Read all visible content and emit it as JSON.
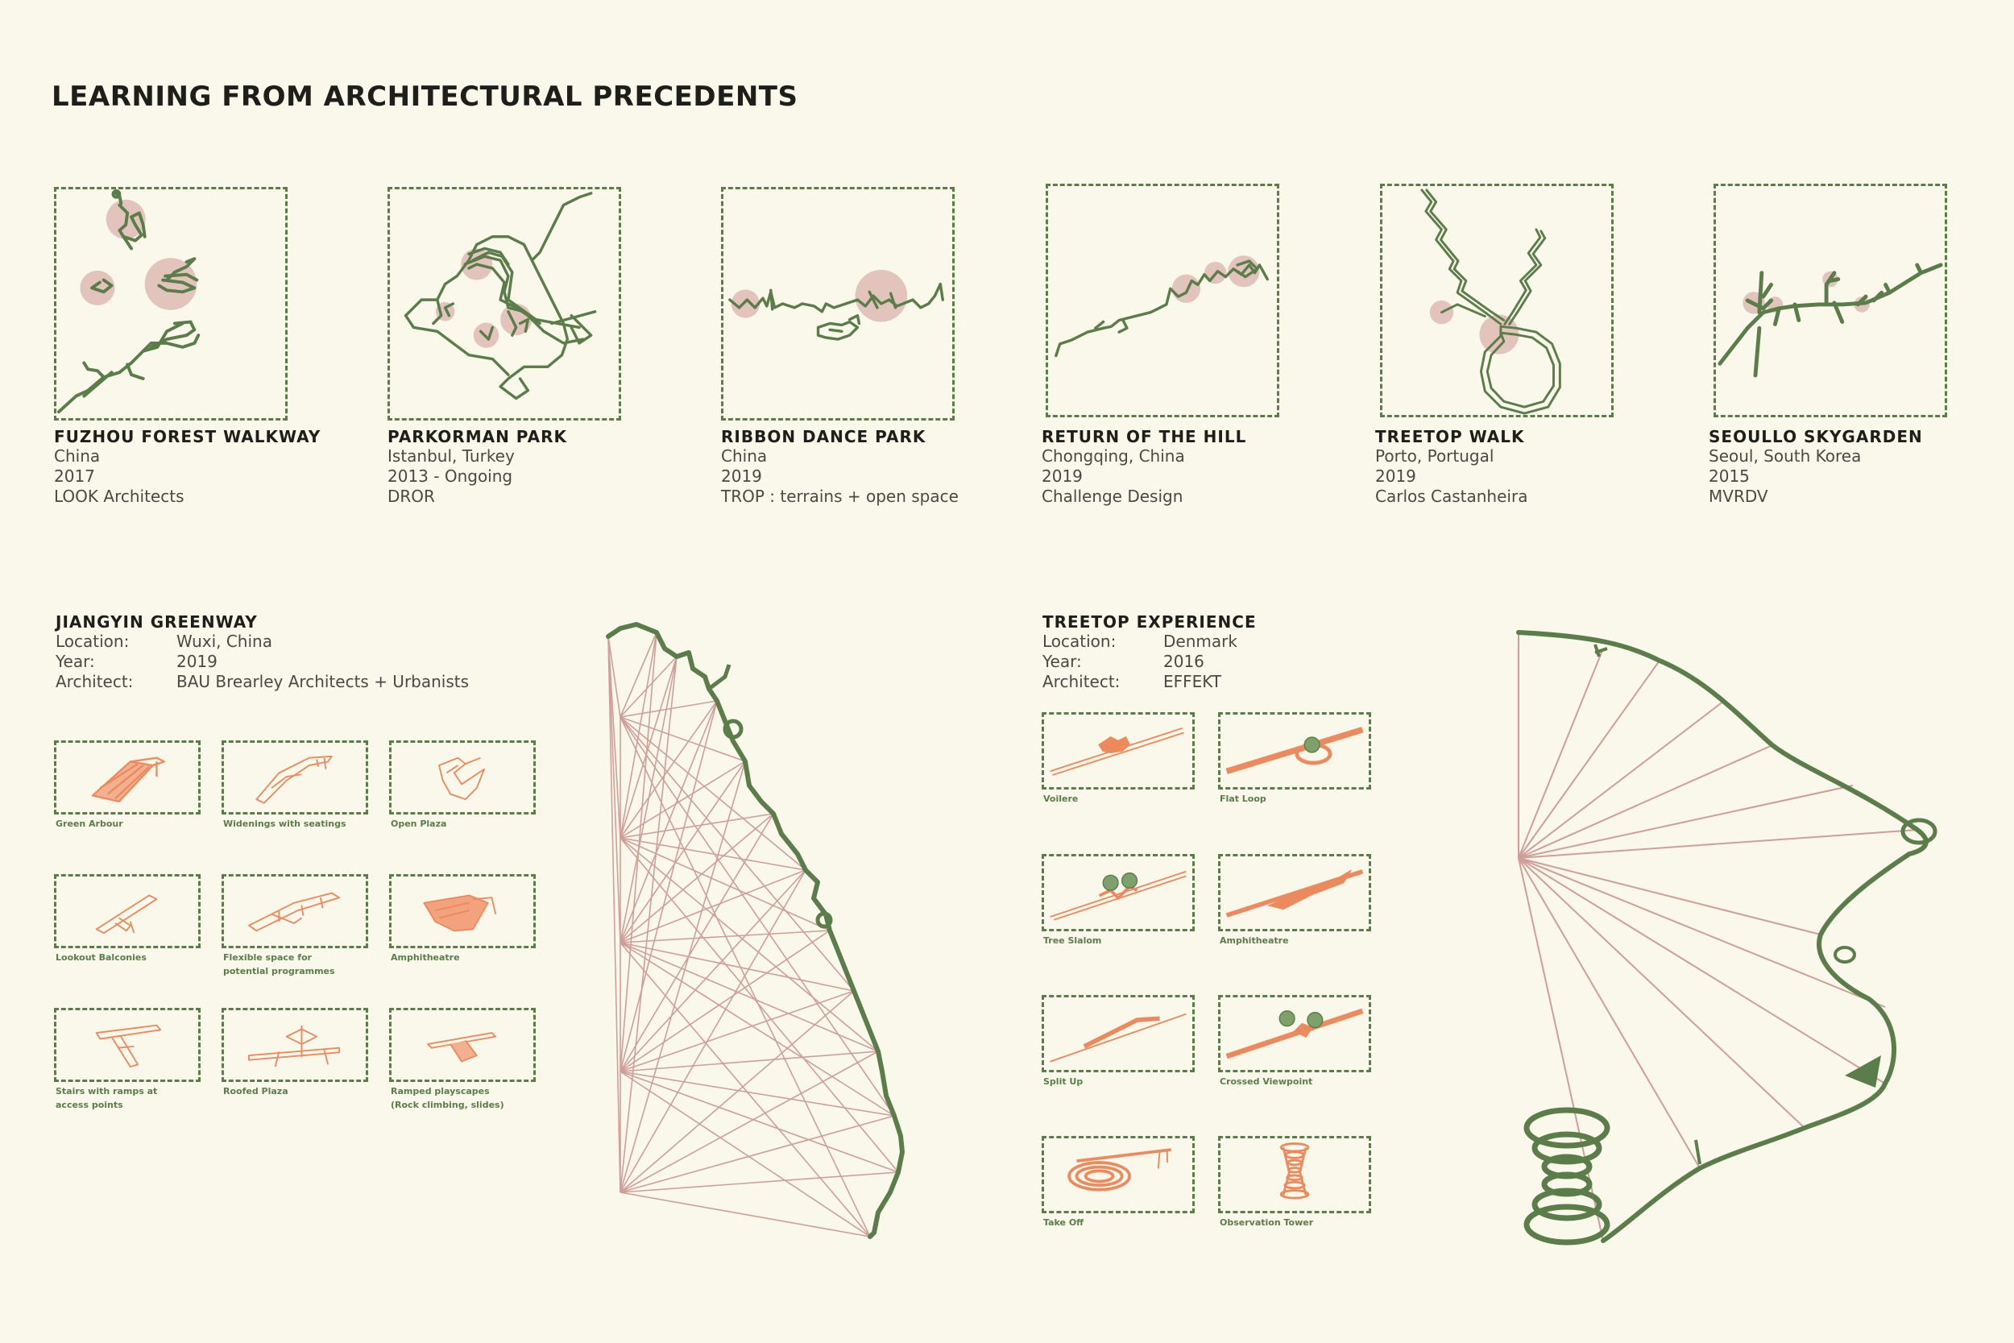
{
  "page_title": "LEARNING FROM ARCHITECTURAL PRECEDENTS",
  "precedents": [
    {
      "name": "FUZHOU FOREST WALKWAY",
      "location": "China",
      "year": "2017",
      "architect": "LOOK Architects"
    },
    {
      "name": "PARKORMAN PARK",
      "location": "Istanbul, Turkey",
      "year": "2013 - Ongoing",
      "architect": "DROR"
    },
    {
      "name": "RIBBON DANCE PARK",
      "location": "China",
      "year": "2019",
      "architect": "TROP : terrains + open space"
    },
    {
      "name": "RETURN OF THE HILL",
      "location": "Chongqing, China",
      "year": "2019",
      "architect": "Challenge Design"
    },
    {
      "name": "TREETOP WALK",
      "location": "Porto, Portugal",
      "year": "2019",
      "architect": "Carlos Castanheira"
    },
    {
      "name": "SEOULLO SKYGARDEN",
      "location": "Seoul, South Korea",
      "year": "2015",
      "architect": "MVRDV"
    }
  ],
  "jiangyin": {
    "title": "JIANGYIN GREENWAY",
    "rows": [
      {
        "key": "Location:",
        "value": "Wuxi, China"
      },
      {
        "key": "Year:",
        "value": "2019"
      },
      {
        "key": "Architect:",
        "value": "BAU Brearley Architects + Urbanists"
      }
    ],
    "elements": [
      {
        "label": "Green Arbour",
        "label2": ""
      },
      {
        "label": "Widenings with seatings",
        "label2": ""
      },
      {
        "label": "Open Plaza",
        "label2": ""
      },
      {
        "label": "Lookout Balconies",
        "label2": ""
      },
      {
        "label": "Flexible space for",
        "label2": "potential  programmes"
      },
      {
        "label": "Amphitheatre",
        "label2": ""
      },
      {
        "label": "Stairs with ramps at",
        "label2": "access points"
      },
      {
        "label": "Roofed Plaza",
        "label2": ""
      },
      {
        "label": "Ramped playscapes",
        "label2": "(Rock climbing, slides)"
      }
    ]
  },
  "treetop": {
    "title": "TREETOP EXPERIENCE",
    "rows": [
      {
        "key": "Location:",
        "value": "Denmark"
      },
      {
        "key": "Year:",
        "value": "2016"
      },
      {
        "key": "Architect:",
        "value": "EFFEKT"
      }
    ],
    "elements": [
      {
        "label": "Voilere"
      },
      {
        "label": "Flat Loop"
      },
      {
        "label": "Tree Slalom"
      },
      {
        "label": "Amphitheatre"
      },
      {
        "label": "Split Up"
      },
      {
        "label": "Crossed Viewpoint"
      },
      {
        "label": "Take Off"
      },
      {
        "label": "Observation Tower"
      }
    ]
  },
  "colors": {
    "green": "#5b7d4a",
    "pink": "#e3c4bd",
    "orange": "#ec8a5e",
    "line_pink": "#cf9e9a",
    "background": "#faf8ea"
  }
}
